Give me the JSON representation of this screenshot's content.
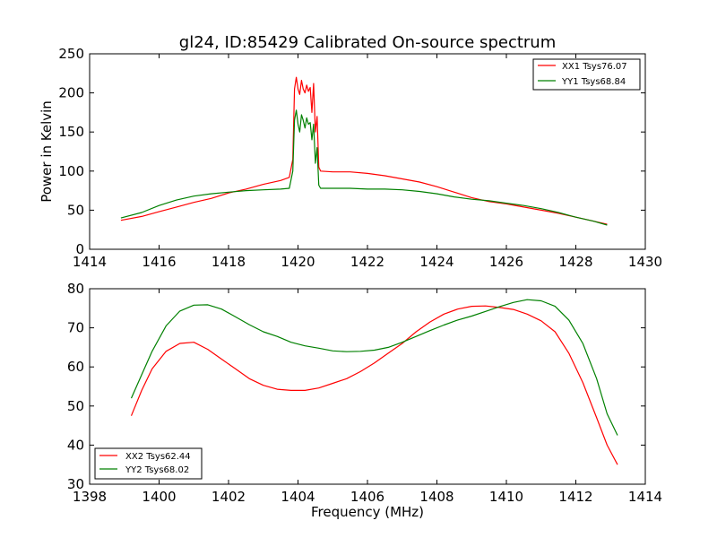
{
  "figure": {
    "title": "gl24, ID:85429 Calibrated On-source spectrum"
  },
  "colors": {
    "red": "#ff0000",
    "green": "#008000"
  },
  "chart_data": [
    {
      "type": "line",
      "title": "gl24, ID:85429 Calibrated On-source spectrum",
      "xlabel": "",
      "ylabel": "Power in Kelvin",
      "xlim": [
        1414,
        1430
      ],
      "ylim": [
        0,
        250
      ],
      "xticks": [
        "1414",
        "1416",
        "1418",
        "1420",
        "1422",
        "1424",
        "1426",
        "1428",
        "1430"
      ],
      "yticks": [
        "0",
        "50",
        "100",
        "150",
        "200",
        "250"
      ],
      "grid": false,
      "legend_position": "top-right",
      "series": [
        {
          "name": "XX1 Tsys76.07",
          "color": "#ff0000",
          "points": [
            [
              1414.9,
              37
            ],
            [
              1415.5,
              42
            ],
            [
              1416.0,
              48
            ],
            [
              1416.5,
              54
            ],
            [
              1417.0,
              60
            ],
            [
              1417.5,
              65
            ],
            [
              1418.0,
              72
            ],
            [
              1418.5,
              77
            ],
            [
              1419.0,
              83
            ],
            [
              1419.5,
              88
            ],
            [
              1419.75,
              92
            ],
            [
              1419.85,
              115
            ],
            [
              1419.9,
              205
            ],
            [
              1419.95,
              220
            ],
            [
              1420.0,
              205
            ],
            [
              1420.05,
              198
            ],
            [
              1420.1,
              216
            ],
            [
              1420.15,
              205
            ],
            [
              1420.2,
              200
            ],
            [
              1420.25,
              210
            ],
            [
              1420.3,
              202
            ],
            [
              1420.35,
              207
            ],
            [
              1420.4,
              175
            ],
            [
              1420.45,
              212
            ],
            [
              1420.5,
              150
            ],
            [
              1420.55,
              170
            ],
            [
              1420.6,
              105
            ],
            [
              1420.65,
              100
            ],
            [
              1421.0,
              99
            ],
            [
              1421.5,
              99
            ],
            [
              1422.0,
              97
            ],
            [
              1422.5,
              94
            ],
            [
              1423.0,
              90
            ],
            [
              1423.5,
              86
            ],
            [
              1424.0,
              80
            ],
            [
              1424.5,
              73
            ],
            [
              1425.0,
              66
            ],
            [
              1425.5,
              61
            ],
            [
              1426.0,
              58
            ],
            [
              1426.5,
              54
            ],
            [
              1427.0,
              50
            ],
            [
              1427.5,
              46
            ],
            [
              1428.0,
              41
            ],
            [
              1428.5,
              36
            ],
            [
              1428.9,
              32
            ]
          ]
        },
        {
          "name": "YY1 Tsys68.84",
          "color": "#008000",
          "points": [
            [
              1414.9,
              40
            ],
            [
              1415.5,
              47
            ],
            [
              1416.0,
              56
            ],
            [
              1416.5,
              63
            ],
            [
              1417.0,
              68
            ],
            [
              1417.5,
              71
            ],
            [
              1418.0,
              73
            ],
            [
              1418.5,
              75
            ],
            [
              1419.0,
              76
            ],
            [
              1419.5,
              77
            ],
            [
              1419.75,
              78
            ],
            [
              1419.85,
              100
            ],
            [
              1419.9,
              165
            ],
            [
              1419.95,
              178
            ],
            [
              1420.0,
              160
            ],
            [
              1420.05,
              150
            ],
            [
              1420.1,
              172
            ],
            [
              1420.15,
              165
            ],
            [
              1420.2,
              155
            ],
            [
              1420.25,
              168
            ],
            [
              1420.3,
              160
            ],
            [
              1420.35,
              162
            ],
            [
              1420.4,
              140
            ],
            [
              1420.45,
              160
            ],
            [
              1420.5,
              110
            ],
            [
              1420.55,
              130
            ],
            [
              1420.6,
              82
            ],
            [
              1420.65,
              78
            ],
            [
              1421.0,
              78
            ],
            [
              1421.5,
              78
            ],
            [
              1422.0,
              77
            ],
            [
              1422.5,
              77
            ],
            [
              1423.0,
              76
            ],
            [
              1423.5,
              74
            ],
            [
              1424.0,
              71
            ],
            [
              1424.5,
              67
            ],
            [
              1425.0,
              64
            ],
            [
              1425.5,
              62
            ],
            [
              1426.0,
              59
            ],
            [
              1426.5,
              56
            ],
            [
              1427.0,
              52
            ],
            [
              1427.5,
              47
            ],
            [
              1428.0,
              41
            ],
            [
              1428.5,
              36
            ],
            [
              1428.9,
              31
            ]
          ]
        }
      ]
    },
    {
      "type": "line",
      "title": "",
      "xlabel": "Frequency (MHz)",
      "ylabel": "",
      "xlim": [
        1398,
        1414
      ],
      "ylim": [
        30,
        80
      ],
      "xticks": [
        "1398",
        "1400",
        "1402",
        "1404",
        "1406",
        "1408",
        "1410",
        "1412",
        "1414"
      ],
      "yticks": [
        "30",
        "40",
        "50",
        "60",
        "70",
        "80"
      ],
      "grid": false,
      "legend_position": "bottom-left",
      "series": [
        {
          "name": "XX2 Tsys62.44",
          "color": "#ff0000",
          "points": [
            [
              1399.2,
              47.5
            ],
            [
              1399.5,
              54
            ],
            [
              1399.8,
              59.5
            ],
            [
              1400.2,
              64
            ],
            [
              1400.6,
              66
            ],
            [
              1401.0,
              66.3
            ],
            [
              1401.4,
              64.5
            ],
            [
              1401.8,
              62
            ],
            [
              1402.2,
              59.5
            ],
            [
              1402.6,
              57
            ],
            [
              1403.0,
              55.3
            ],
            [
              1403.4,
              54.3
            ],
            [
              1403.8,
              54
            ],
            [
              1404.2,
              54
            ],
            [
              1404.6,
              54.6
            ],
            [
              1405.0,
              55.8
            ],
            [
              1405.4,
              57
            ],
            [
              1405.8,
              58.8
            ],
            [
              1406.2,
              61
            ],
            [
              1406.6,
              63.5
            ],
            [
              1407.0,
              66
            ],
            [
              1407.4,
              69
            ],
            [
              1407.8,
              71.5
            ],
            [
              1408.2,
              73.5
            ],
            [
              1408.6,
              74.8
            ],
            [
              1409.0,
              75.5
            ],
            [
              1409.4,
              75.6
            ],
            [
              1409.8,
              75.2
            ],
            [
              1410.2,
              74.7
            ],
            [
              1410.6,
              73.5
            ],
            [
              1411.0,
              71.8
            ],
            [
              1411.4,
              69
            ],
            [
              1411.8,
              63.5
            ],
            [
              1412.2,
              56
            ],
            [
              1412.6,
              47
            ],
            [
              1412.9,
              40
            ],
            [
              1413.2,
              35
            ]
          ]
        },
        {
          "name": "YY2 Tsys68.02",
          "color": "#008000",
          "points": [
            [
              1399.2,
              52
            ],
            [
              1399.5,
              58
            ],
            [
              1399.8,
              64
            ],
            [
              1400.2,
              70.5
            ],
            [
              1400.6,
              74.3
            ],
            [
              1401.0,
              75.8
            ],
            [
              1401.4,
              75.9
            ],
            [
              1401.8,
              74.8
            ],
            [
              1402.2,
              72.8
            ],
            [
              1402.6,
              70.8
            ],
            [
              1403.0,
              69
            ],
            [
              1403.4,
              67.8
            ],
            [
              1403.8,
              66.3
            ],
            [
              1404.2,
              65.4
            ],
            [
              1404.6,
              64.8
            ],
            [
              1405.0,
              64.1
            ],
            [
              1405.4,
              63.9
            ],
            [
              1405.8,
              64
            ],
            [
              1406.2,
              64.3
            ],
            [
              1406.6,
              65
            ],
            [
              1407.0,
              66.3
            ],
            [
              1407.4,
              67.8
            ],
            [
              1407.8,
              69.3
            ],
            [
              1408.2,
              70.7
            ],
            [
              1408.6,
              72
            ],
            [
              1409.0,
              73
            ],
            [
              1409.4,
              74.2
            ],
            [
              1409.8,
              75.4
            ],
            [
              1410.2,
              76.5
            ],
            [
              1410.6,
              77.2
            ],
            [
              1411.0,
              76.9
            ],
            [
              1411.4,
              75.5
            ],
            [
              1411.8,
              72
            ],
            [
              1412.2,
              66
            ],
            [
              1412.6,
              57
            ],
            [
              1412.9,
              48
            ],
            [
              1413.2,
              42.5
            ]
          ]
        }
      ]
    }
  ]
}
